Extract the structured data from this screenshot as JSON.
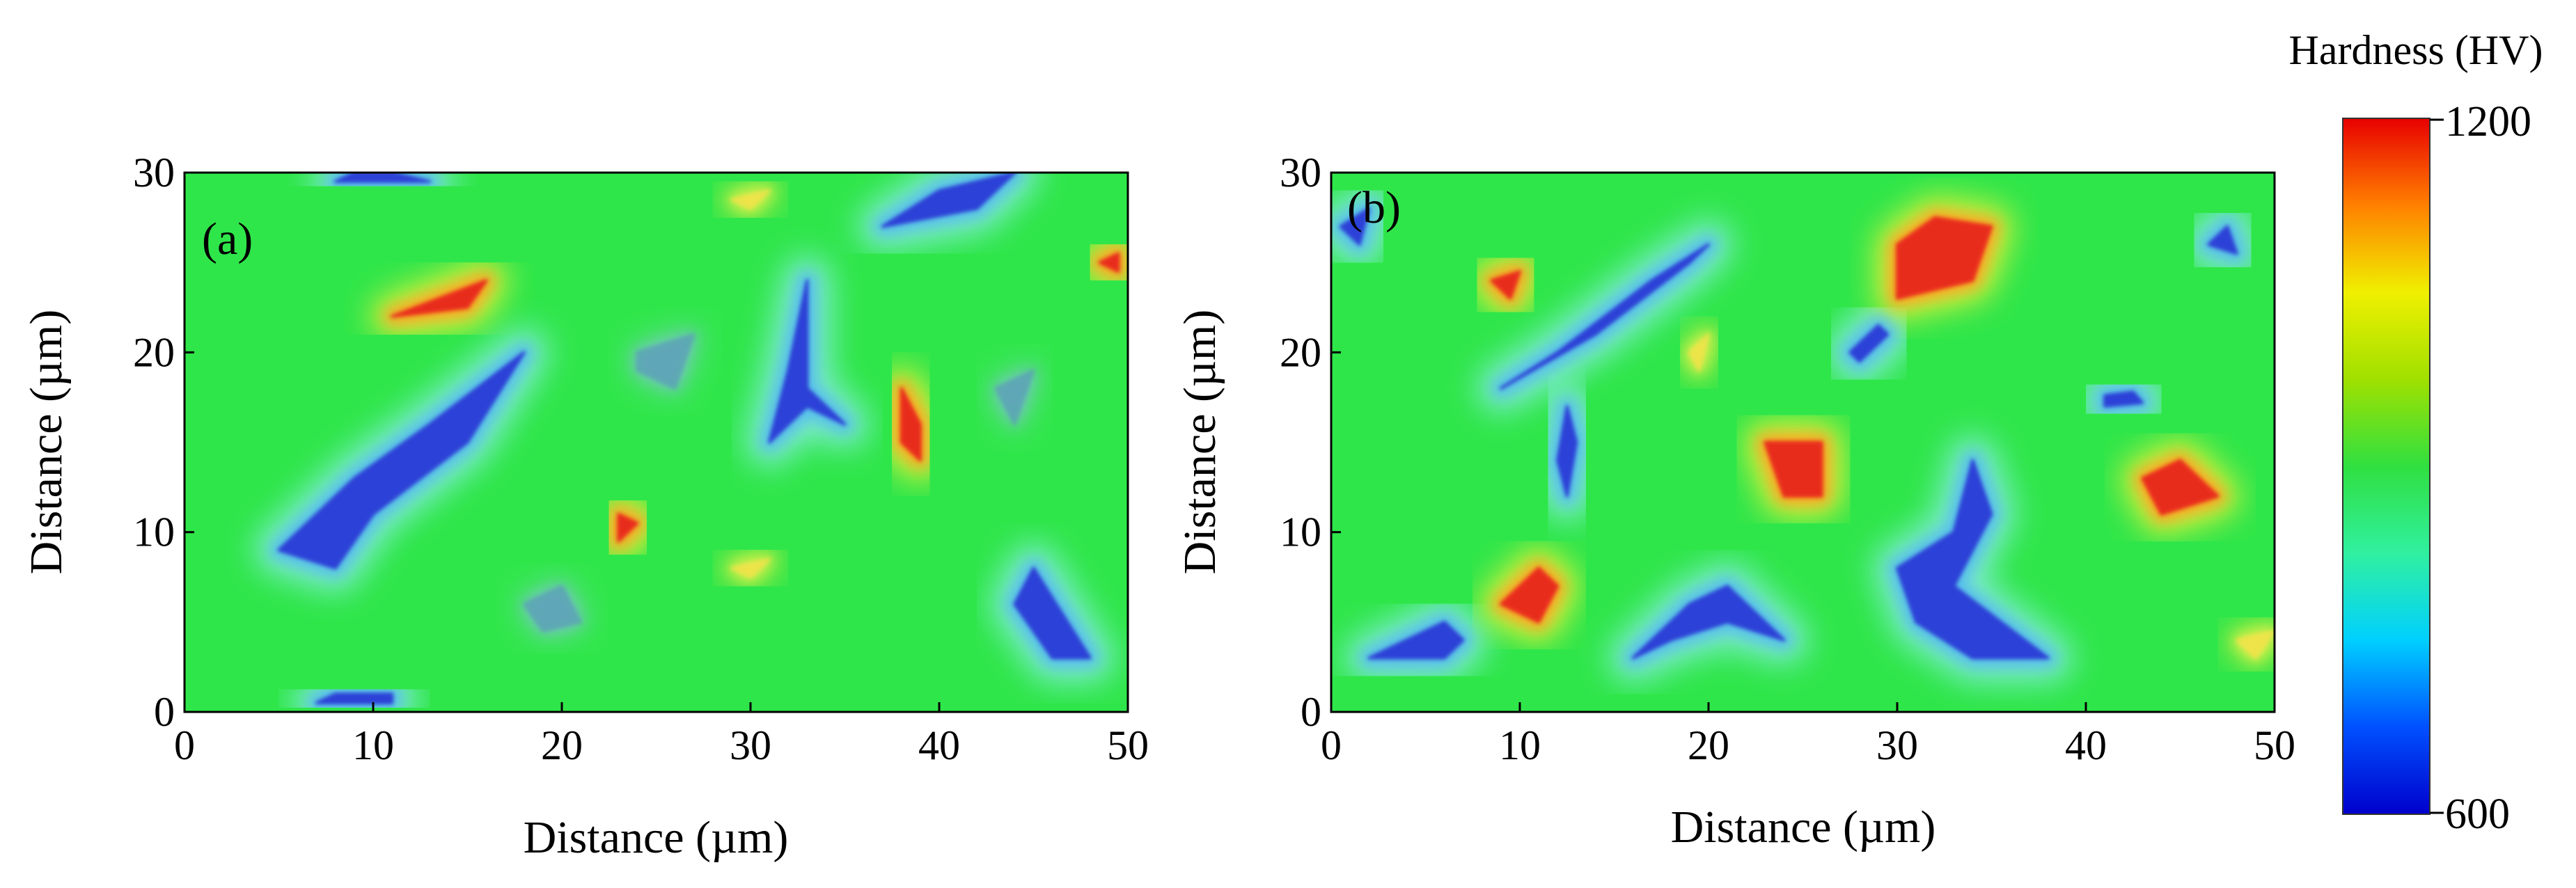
{
  "colors": {
    "background_field": "#2fe64a",
    "hard_phase": "#e8281c",
    "soft_phase": "#2a3ad6",
    "halo": "#7fe9d6",
    "axis": "#000000"
  },
  "chart_data": [
    {
      "type": "heatmap",
      "panel_label": "(a)",
      "xlabel": "Distance (µm)",
      "ylabel": "Distance (µm)",
      "xlim": [
        0,
        50
      ],
      "ylim": [
        0,
        30
      ],
      "xticks": [
        0,
        10,
        20,
        30,
        40,
        50
      ],
      "yticks": [
        0,
        10,
        20,
        30
      ],
      "background_value": 880,
      "features": [
        {
          "kind": "soft",
          "points": [
            [
              5,
              9
            ],
            [
              9,
              13
            ],
            [
              13,
              16
            ],
            [
              18,
              20
            ],
            [
              15,
              15
            ],
            [
              10,
              11
            ],
            [
              8,
              8
            ]
          ]
        },
        {
          "kind": "soft",
          "points": [
            [
              37,
              27
            ],
            [
              42,
              28
            ],
            [
              44,
              30
            ],
            [
              40,
              29
            ]
          ]
        },
        {
          "kind": "soft",
          "points": [
            [
              33,
              24
            ],
            [
              33,
              18
            ],
            [
              35,
              16
            ],
            [
              33,
              17
            ],
            [
              31,
              15
            ],
            [
              32,
              19
            ]
          ]
        },
        {
          "kind": "soft",
          "points": [
            [
              45,
              8
            ],
            [
              48,
              3
            ],
            [
              46,
              3
            ],
            [
              44,
              6
            ]
          ]
        },
        {
          "kind": "soft",
          "points": [
            [
              8,
              29.5
            ],
            [
              13,
              29.5
            ],
            [
              11,
              30
            ],
            [
              9,
              30
            ]
          ]
        },
        {
          "kind": "soft",
          "points": [
            [
              7,
              0.5
            ],
            [
              11,
              0.5
            ],
            [
              11,
              1
            ],
            [
              8,
              1
            ]
          ]
        },
        {
          "kind": "hard",
          "points": [
            [
              11,
              22
            ],
            [
              16,
              24
            ],
            [
              15,
              22.5
            ]
          ]
        },
        {
          "kind": "hard",
          "points": [
            [
              38,
              18
            ],
            [
              39,
              16
            ],
            [
              39,
              14
            ],
            [
              38,
              15
            ]
          ]
        },
        {
          "kind": "hard",
          "points": [
            [
              23,
              9.5
            ],
            [
              24,
              10.5
            ],
            [
              23,
              11
            ]
          ]
        },
        {
          "kind": "hard",
          "points": [
            [
              48.5,
              25
            ],
            [
              49.5,
              24.5
            ],
            [
              49.5,
              25.5
            ]
          ]
        },
        {
          "kind": "mid",
          "points": [
            [
              29,
              28.5
            ],
            [
              31,
              29
            ],
            [
              30,
              28
            ]
          ]
        },
        {
          "kind": "mid",
          "points": [
            [
              29,
              8
            ],
            [
              31,
              8.5
            ],
            [
              30,
              7.5
            ]
          ]
        },
        {
          "kind": "bluish",
          "points": [
            [
              24,
              20
            ],
            [
              27,
              21
            ],
            [
              26,
              18
            ],
            [
              24,
              19
            ]
          ]
        },
        {
          "kind": "bluish",
          "points": [
            [
              18,
              6
            ],
            [
              20,
              7
            ],
            [
              21,
              5
            ],
            [
              19,
              4.5
            ]
          ]
        },
        {
          "kind": "bluish",
          "points": [
            [
              43,
              18
            ],
            [
              45,
              19
            ],
            [
              44,
              16
            ]
          ]
        }
      ]
    },
    {
      "type": "heatmap",
      "panel_label": "(b)",
      "xlabel": "Distance (µm)",
      "ylabel": "Distance (µm)",
      "xlim": [
        0,
        50
      ],
      "ylim": [
        0,
        30
      ],
      "xticks": [
        0,
        10,
        20,
        30,
        40,
        50
      ],
      "yticks": [
        0,
        10,
        20,
        30
      ],
      "background_value": 880,
      "features": [
        {
          "kind": "soft",
          "points": [
            [
              9,
              18
            ],
            [
              14,
              21
            ],
            [
              19,
              25
            ],
            [
              20,
              26
            ],
            [
              17,
              24
            ],
            [
              12,
              20
            ]
          ]
        },
        {
          "kind": "soft",
          "points": [
            [
              12.5,
              17
            ],
            [
              13,
              15
            ],
            [
              12.5,
              12
            ],
            [
              12,
              14
            ]
          ]
        },
        {
          "kind": "soft",
          "points": [
            [
              28,
              19.5
            ],
            [
              29.5,
              21
            ],
            [
              29,
              21.5
            ],
            [
              27.5,
              20
            ]
          ]
        },
        {
          "kind": "soft",
          "points": [
            [
              2,
              3
            ],
            [
              6,
              5
            ],
            [
              7,
              4
            ],
            [
              6,
              3
            ]
          ]
        },
        {
          "kind": "soft",
          "points": [
            [
              16,
              3
            ],
            [
              19,
              6
            ],
            [
              21,
              7
            ],
            [
              23,
              5
            ],
            [
              24,
              4
            ],
            [
              21,
              5
            ],
            [
              18,
              4
            ]
          ]
        },
        {
          "kind": "soft",
          "points": [
            [
              30,
              8
            ],
            [
              33,
              10
            ],
            [
              34,
              14
            ],
            [
              35,
              11
            ],
            [
              33,
              7
            ],
            [
              38,
              3
            ],
            [
              34,
              3
            ],
            [
              31,
              5
            ]
          ]
        },
        {
          "kind": "soft",
          "points": [
            [
              41,
              17
            ],
            [
              43,
              17.2
            ],
            [
              42.5,
              17.8
            ],
            [
              41,
              17.6
            ]
          ]
        },
        {
          "kind": "soft",
          "points": [
            [
              46.5,
              26
            ],
            [
              47.5,
              27
            ],
            [
              48,
              25.5
            ]
          ]
        },
        {
          "kind": "soft",
          "points": [
            [
              0.5,
              27
            ],
            [
              2,
              28
            ],
            [
              1.5,
              26
            ]
          ]
        },
        {
          "kind": "hard",
          "points": [
            [
              30,
              26
            ],
            [
              32,
              27.5
            ],
            [
              35,
              27
            ],
            [
              34,
              24
            ],
            [
              30,
              23
            ]
          ]
        },
        {
          "kind": "hard",
          "points": [
            [
              23,
              15
            ],
            [
              26,
              15
            ],
            [
              26,
              12
            ],
            [
              24,
              12
            ]
          ]
        },
        {
          "kind": "hard",
          "points": [
            [
              43,
              13
            ],
            [
              45,
              14
            ],
            [
              47,
              12
            ],
            [
              44,
              11
            ]
          ]
        },
        {
          "kind": "hard",
          "points": [
            [
              9,
              6
            ],
            [
              11,
              8
            ],
            [
              12,
              7
            ],
            [
              11,
              5
            ]
          ]
        },
        {
          "kind": "hard",
          "points": [
            [
              8.5,
              24
            ],
            [
              10,
              24.5
            ],
            [
              9.5,
              23
            ]
          ]
        },
        {
          "kind": "mid",
          "points": [
            [
              19,
              20
            ],
            [
              20,
              21
            ],
            [
              19.5,
              19
            ]
          ]
        },
        {
          "kind": "mid",
          "points": [
            [
              48,
              4
            ],
            [
              50,
              4.5
            ],
            [
              49,
              3
            ]
          ]
        }
      ]
    }
  ],
  "colorbar": {
    "title": "Hardness (HV)",
    "max_label": "1200",
    "min_label": "600",
    "range": [
      600,
      1200
    ],
    "stops": [
      "#0000cc",
      "#0050ff",
      "#00d0ff",
      "#30f0a0",
      "#30e040",
      "#a0e000",
      "#f0f000",
      "#ff8000",
      "#e80000"
    ]
  }
}
